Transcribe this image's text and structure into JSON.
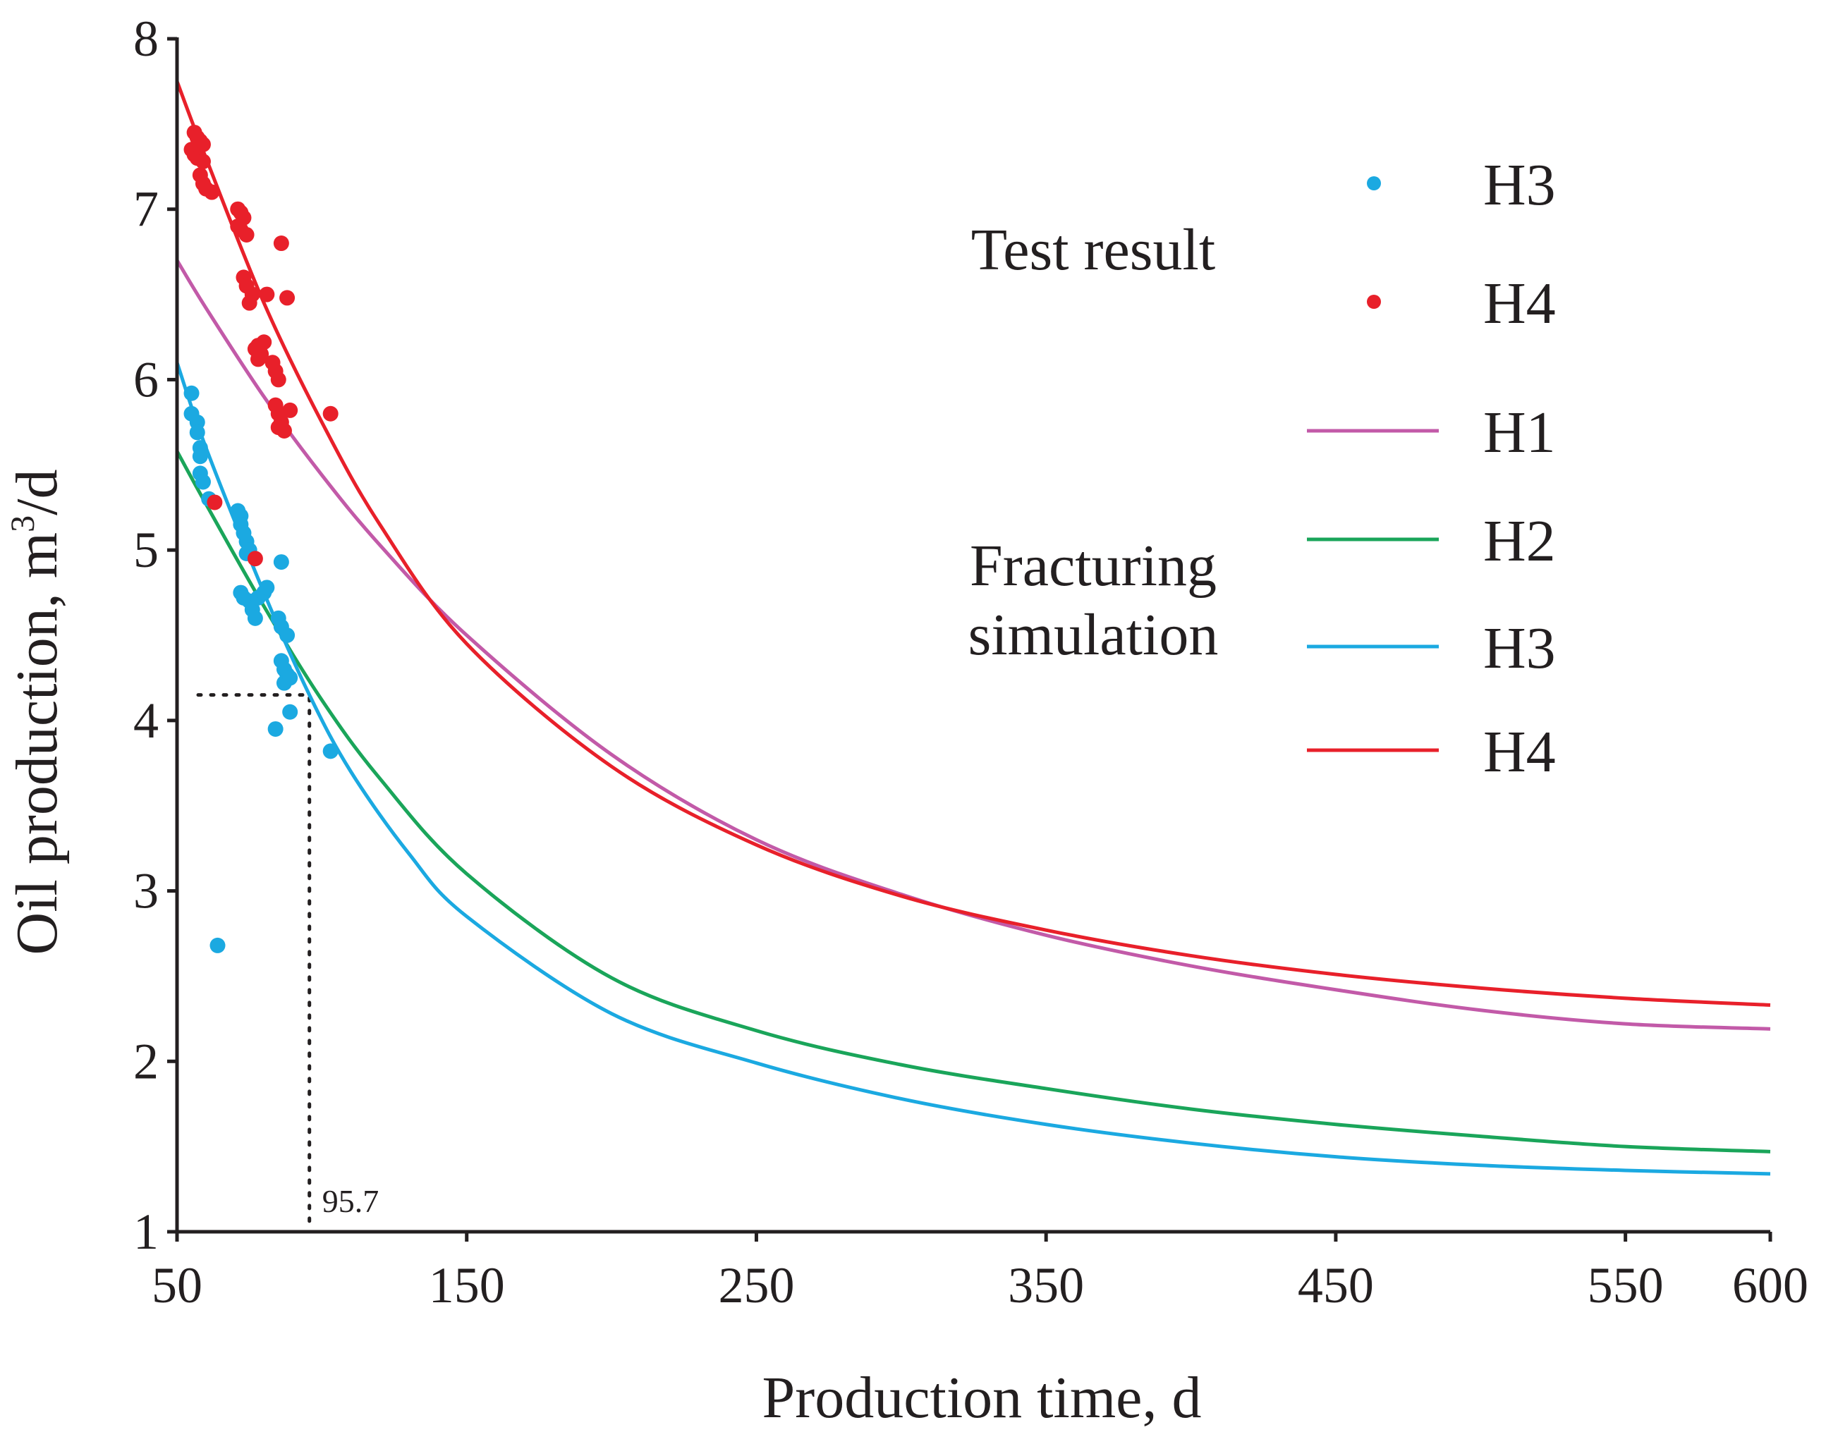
{
  "chart_data": {
    "type": "line",
    "xlabel": "Production time, d",
    "ylabel_main": "Oil production, m",
    "ylabel_sup": "3",
    "ylabel_tail": "/d",
    "xlim": [
      50,
      600
    ],
    "ylim": [
      1,
      8
    ],
    "x_ticks": [
      50,
      150,
      250,
      350,
      450,
      550,
      600
    ],
    "y_ticks": [
      1,
      2,
      3,
      4,
      5,
      6,
      7,
      8
    ],
    "grid": false,
    "legend_position": "top-right",
    "legend_groups": [
      {
        "label_lines": [
          "Test result"
        ],
        "entries": [
          "H3",
          "H4"
        ]
      },
      {
        "label_lines": [
          "Fracturing",
          "simulation"
        ],
        "entries": [
          "H1",
          "H2",
          "H3",
          "H4"
        ]
      }
    ],
    "series": [
      {
        "name": "H1",
        "kind": "simulation",
        "color": "#c25aa8",
        "x": [
          50,
          60,
          80,
          100,
          120,
          150,
          200,
          250,
          300,
          350,
          400,
          450,
          500,
          550,
          600
        ],
        "y": [
          6.7,
          6.42,
          5.9,
          5.44,
          5.03,
          4.5,
          3.8,
          3.3,
          2.98,
          2.74,
          2.56,
          2.42,
          2.3,
          2.22,
          2.19
        ]
      },
      {
        "name": "H2",
        "kind": "simulation",
        "color": "#1aa55a",
        "x": [
          50,
          60,
          80,
          100,
          120,
          150,
          200,
          250,
          300,
          350,
          400,
          450,
          500,
          550,
          600
        ],
        "y": [
          5.58,
          5.27,
          4.67,
          4.12,
          3.66,
          3.1,
          2.49,
          2.18,
          1.98,
          1.84,
          1.72,
          1.63,
          1.56,
          1.5,
          1.47
        ]
      },
      {
        "name": "H3",
        "kind": "simulation",
        "color": "#1ba9e1",
        "x": [
          50,
          60,
          80,
          95.7,
          110,
          130,
          150,
          200,
          250,
          300,
          350,
          400,
          450,
          500,
          550,
          600
        ],
        "y": [
          6.1,
          5.6,
          4.75,
          4.15,
          3.7,
          3.22,
          2.85,
          2.28,
          1.99,
          1.78,
          1.63,
          1.52,
          1.44,
          1.39,
          1.36,
          1.34
        ]
      },
      {
        "name": "H4",
        "kind": "simulation",
        "color": "#e8202a",
        "x": [
          50,
          60,
          80,
          100,
          120,
          150,
          200,
          250,
          300,
          350,
          400,
          450,
          500,
          550,
          600
        ],
        "y": [
          7.75,
          7.3,
          6.45,
          5.75,
          5.15,
          4.45,
          3.73,
          3.27,
          2.97,
          2.77,
          2.62,
          2.51,
          2.43,
          2.37,
          2.33
        ]
      },
      {
        "name": "H3",
        "kind": "test",
        "color": "#1ba9e1",
        "points": [
          [
            55,
            5.92
          ],
          [
            55,
            5.8
          ],
          [
            57,
            5.75
          ],
          [
            57,
            5.69
          ],
          [
            58,
            5.6
          ],
          [
            58,
            5.55
          ],
          [
            58,
            5.45
          ],
          [
            59,
            5.4
          ],
          [
            61,
            5.3
          ],
          [
            64,
            2.68
          ],
          [
            71,
            5.23
          ],
          [
            72,
            5.2
          ],
          [
            72,
            5.15
          ],
          [
            73,
            5.1
          ],
          [
            74,
            5.05
          ],
          [
            75,
            5.0
          ],
          [
            74,
            4.98
          ],
          [
            72,
            4.75
          ],
          [
            73,
            4.72
          ],
          [
            75,
            4.7
          ],
          [
            76,
            4.65
          ],
          [
            77,
            4.6
          ],
          [
            78,
            4.72
          ],
          [
            80,
            4.75
          ],
          [
            81,
            4.78
          ],
          [
            86,
            4.93
          ],
          [
            85,
            4.6
          ],
          [
            86,
            4.55
          ],
          [
            88,
            4.5
          ],
          [
            86,
            4.35
          ],
          [
            87,
            4.3
          ],
          [
            88,
            4.27
          ],
          [
            87,
            4.22
          ],
          [
            89,
            4.25
          ],
          [
            84,
            3.95
          ],
          [
            89,
            4.05
          ],
          [
            103,
            3.82
          ]
        ]
      },
      {
        "name": "H4",
        "kind": "test",
        "color": "#e8202a",
        "points": [
          [
            56,
            7.45
          ],
          [
            57,
            7.42
          ],
          [
            58,
            7.4
          ],
          [
            59,
            7.38
          ],
          [
            55,
            7.35
          ],
          [
            56,
            7.32
          ],
          [
            57,
            7.3
          ],
          [
            59,
            7.28
          ],
          [
            58,
            7.2
          ],
          [
            59,
            7.15
          ],
          [
            60,
            7.12
          ],
          [
            62,
            7.1
          ],
          [
            71,
            7.0
          ],
          [
            72,
            6.98
          ],
          [
            73,
            6.95
          ],
          [
            71,
            6.9
          ],
          [
            72,
            6.88
          ],
          [
            74,
            6.85
          ],
          [
            86,
            6.8
          ],
          [
            73,
            6.6
          ],
          [
            74,
            6.55
          ],
          [
            76,
            6.5
          ],
          [
            75,
            6.45
          ],
          [
            81,
            6.5
          ],
          [
            88,
            6.48
          ],
          [
            78,
            6.2
          ],
          [
            80,
            6.22
          ],
          [
            77,
            6.18
          ],
          [
            79,
            6.15
          ],
          [
            78,
            6.12
          ],
          [
            83,
            6.1
          ],
          [
            84,
            6.05
          ],
          [
            85,
            6.0
          ],
          [
            84,
            5.85
          ],
          [
            85,
            5.8
          ],
          [
            86,
            5.75
          ],
          [
            85,
            5.72
          ],
          [
            87,
            5.7
          ],
          [
            89,
            5.82
          ],
          [
            103,
            5.8
          ],
          [
            63,
            5.28
          ],
          [
            77,
            4.95
          ]
        ]
      }
    ],
    "annotations": [
      {
        "label": "95.7",
        "x": 95.7,
        "y": 4.15
      }
    ]
  }
}
